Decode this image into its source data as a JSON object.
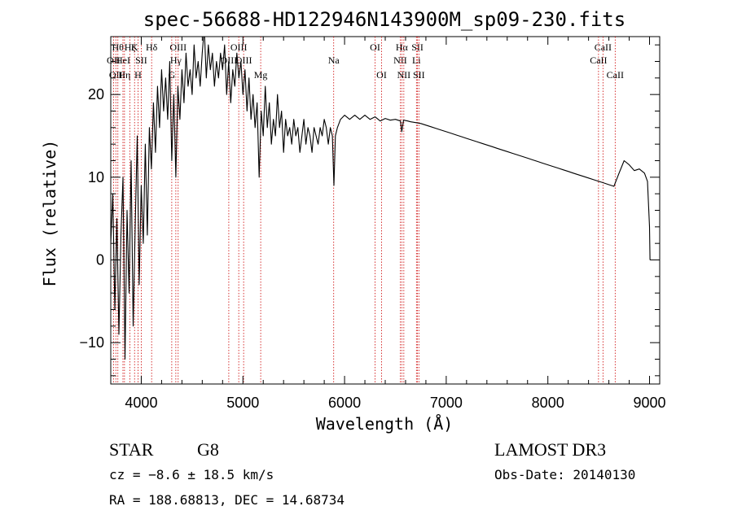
{
  "chart_data": {
    "type": "line",
    "title": "spec-56688-HD122946N143900M_sp09-230.fits",
    "xlabel": "Wavelength (Å)",
    "ylabel": "Flux (relative)",
    "xlim": [
      3700,
      9100
    ],
    "ylim": [
      -15,
      27
    ],
    "xticks": [
      4000,
      5000,
      6000,
      7000,
      8000,
      9000
    ],
    "yticks": [
      -10,
      0,
      10,
      20
    ],
    "xtick_labels": [
      "4000",
      "5000",
      "6000",
      "7000",
      "8000",
      "9000"
    ],
    "ytick_labels": [
      "−10",
      "0",
      "10",
      "20"
    ],
    "grid": false,
    "series": [
      {
        "color": "#000000",
        "x": [
          3700,
          3720,
          3740,
          3760,
          3780,
          3800,
          3820,
          3840,
          3860,
          3880,
          3900,
          3920,
          3940,
          3960,
          3980,
          4000,
          4020,
          4040,
          4060,
          4080,
          4100,
          4120,
          4140,
          4160,
          4180,
          4200,
          4220,
          4240,
          4260,
          4280,
          4300,
          4320,
          4340,
          4360,
          4380,
          4400,
          4420,
          4440,
          4460,
          4480,
          4500,
          4520,
          4540,
          4560,
          4580,
          4600,
          4620,
          4640,
          4660,
          4680,
          4700,
          4720,
          4740,
          4760,
          4780,
          4800,
          4820,
          4840,
          4860,
          4880,
          4900,
          4920,
          4940,
          4960,
          4980,
          5000,
          5020,
          5040,
          5060,
          5080,
          5100,
          5120,
          5140,
          5160,
          5180,
          5200,
          5220,
          5240,
          5260,
          5280,
          5300,
          5320,
          5340,
          5360,
          5380,
          5400,
          5420,
          5440,
          5460,
          5480,
          5500,
          5520,
          5540,
          5560,
          5580,
          5600,
          5620,
          5640,
          5660,
          5680,
          5700,
          5720,
          5740,
          5760,
          5780,
          5800,
          5820,
          5840,
          5860,
          5880,
          5895,
          5910,
          5930,
          5960,
          6000,
          6050,
          6100,
          6150,
          6200,
          6250,
          6300,
          6350,
          6400,
          6450,
          6500,
          6550,
          6563,
          6580,
          6620,
          6650,
          6700,
          6750,
          6800,
          6850,
          6900,
          6950,
          7000,
          7050,
          7100,
          7150,
          7200,
          7250,
          7300,
          7350,
          7400,
          7450,
          7500,
          7550,
          7600,
          7650,
          7700,
          7750,
          7800,
          7850,
          7900,
          7950,
          8000,
          8050,
          8100,
          8150,
          8200,
          8250,
          8300,
          8350,
          8400,
          8450,
          8500,
          8550,
          8600,
          8650,
          8700,
          8750,
          8800,
          8850,
          8900,
          8950,
          8980,
          9000,
          9005
        ],
        "y": [
          2,
          8,
          -6,
          5,
          -9,
          3,
          10,
          -12,
          6,
          -4,
          12,
          -8,
          4,
          15,
          -3,
          9,
          2,
          14,
          3,
          16,
          11,
          19,
          13,
          21,
          16,
          23,
          18,
          22,
          17,
          24,
          12,
          20,
          10,
          21,
          17,
          23,
          19,
          25,
          21,
          23,
          20,
          26,
          22,
          24,
          21,
          25,
          28,
          22,
          26,
          23,
          25,
          21,
          24,
          22,
          25,
          23,
          26,
          20,
          24,
          19,
          23,
          21,
          25,
          22,
          24,
          20,
          23,
          18,
          22,
          17,
          20,
          16,
          19,
          10,
          18,
          15,
          21,
          16,
          19,
          14,
          17,
          15,
          20,
          16,
          18,
          13,
          17,
          15,
          16,
          14,
          17,
          15,
          16,
          13,
          15,
          17,
          14,
          16,
          15,
          13,
          16,
          15,
          14,
          16,
          15,
          17,
          16,
          14,
          16,
          15,
          9,
          15,
          16,
          17,
          17.5,
          17,
          17.5,
          17,
          17.5,
          17,
          17.3,
          16.8,
          17.1,
          16.9,
          17,
          16.8,
          15.5,
          16.9,
          16.8,
          16.7,
          16.6,
          16.5,
          16.3,
          16.1,
          15.9,
          15.7,
          15.5,
          15.3,
          15.1,
          14.9,
          14.7,
          14.5,
          14.3,
          14.1,
          13.9,
          13.7,
          13.5,
          13.3,
          13.1,
          12.9,
          12.7,
          12.5,
          12.3,
          12.1,
          11.9,
          11.7,
          11.5,
          11.3,
          11.1,
          10.9,
          10.7,
          10.5,
          10.3,
          10.1,
          9.9,
          9.7,
          9.5,
          9.3,
          9.1,
          8.9,
          10.5,
          12.0,
          11.5,
          10.8,
          11.0,
          10.5,
          9.5,
          4,
          0
        ]
      }
    ],
    "lines": [
      {
        "x": 3727,
        "label": "OII",
        "row": 2
      },
      {
        "x": 3750,
        "label": "OII",
        "row": 3
      },
      {
        "x": 3770,
        "label": "Hθ",
        "row": 1
      },
      {
        "x": 3820,
        "label": "HeI",
        "row": 2
      },
      {
        "x": 3835,
        "label": "Hη",
        "row": 3
      },
      {
        "x": 3889,
        "label": "Hζ",
        "row": 1
      },
      {
        "x": 3934,
        "label": "K",
        "row": 1
      },
      {
        "x": 3968,
        "label": "H",
        "row": 3
      },
      {
        "x": 4000,
        "label": "SII",
        "row": 2
      },
      {
        "x": 4102,
        "label": "Hδ",
        "row": 1
      },
      {
        "x": 4300,
        "label": "G",
        "row": 3
      },
      {
        "x": 4340,
        "label": "Hγ",
        "row": 2
      },
      {
        "x": 4363,
        "label": "OIII",
        "row": 1
      },
      {
        "x": 4861,
        "label": "OIII",
        "row": 2
      },
      {
        "x": 4959,
        "label": "OIII",
        "row": 1
      },
      {
        "x": 5007,
        "label": "OIII",
        "row": 2
      },
      {
        "x": 5175,
        "label": "Mg",
        "row": 3
      },
      {
        "x": 5893,
        "label": "Na",
        "row": 2
      },
      {
        "x": 6300,
        "label": "OI",
        "row": 1
      },
      {
        "x": 6364,
        "label": "OI",
        "row": 3
      },
      {
        "x": 6548,
        "label": "NII",
        "row": 2
      },
      {
        "x": 6563,
        "label": "Hα",
        "row": 1
      },
      {
        "x": 6583,
        "label": "NII",
        "row": 3
      },
      {
        "x": 6707,
        "label": "Li",
        "row": 2
      },
      {
        "x": 6717,
        "label": "SII",
        "row": 1
      },
      {
        "x": 6731,
        "label": "SII",
        "row": 3
      },
      {
        "x": 8498,
        "label": "CaII",
        "row": 2
      },
      {
        "x": 8542,
        "label": "CaII",
        "row": 1
      },
      {
        "x": 8662,
        "label": "CaII",
        "row": 3
      }
    ]
  },
  "footer": {
    "object_class": "STAR",
    "subclass": "G8",
    "survey": "LAMOST DR3",
    "redshift": "cz = −8.6 ± 18.5 km/s",
    "obs_date": "Obs-Date: 20140130",
    "coords": "RA = 188.68813, DEC =  14.68734"
  }
}
